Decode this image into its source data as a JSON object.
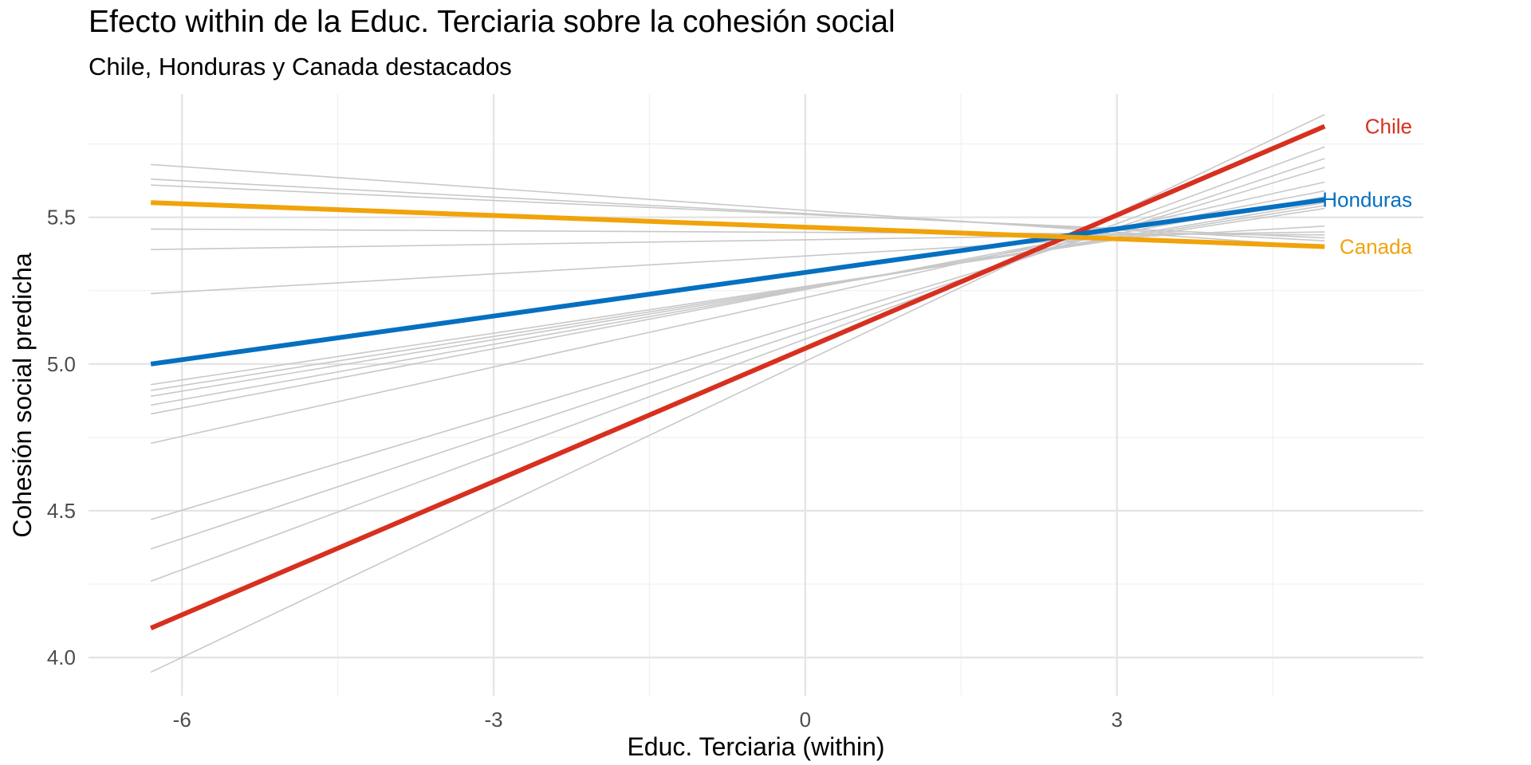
{
  "chart_data": {
    "type": "line",
    "title": "Efecto within de la Educ. Terciaria sobre la cohesión social",
    "subtitle": "Chile, Honduras y Canada destacados",
    "xlabel": "Educ. Terciaria (within)",
    "ylabel": "Cohesión social predicha",
    "xlim": [
      -6.9,
      5.95
    ],
    "ylim": [
      3.87,
      5.92
    ],
    "x_ticks": [
      -6,
      -3,
      0,
      3
    ],
    "x_tick_labels": [
      "-6",
      "-3",
      "0",
      "3"
    ],
    "y_ticks": [
      4.0,
      4.5,
      5.0,
      5.5
    ],
    "y_tick_labels": [
      "4.0",
      "4.5",
      "5.0",
      "5.5"
    ],
    "x_minor_ticks": [
      -4.5,
      -1.5,
      1.5,
      4.5
    ],
    "y_minor_ticks": [
      4.25,
      4.75,
      5.25,
      5.75
    ],
    "grid": true,
    "background_color": "#c8c8c8",
    "background_series": [
      {
        "x": [
          -6.3,
          5.0
        ],
        "y": [
          5.68,
          5.4
        ]
      },
      {
        "x": [
          -6.3,
          5.0
        ],
        "y": [
          5.63,
          5.42
        ]
      },
      {
        "x": [
          -6.3,
          5.0
        ],
        "y": [
          5.61,
          5.43
        ]
      },
      {
        "x": [
          -6.3,
          5.0
        ],
        "y": [
          5.46,
          5.44
        ]
      },
      {
        "x": [
          -6.3,
          5.0
        ],
        "y": [
          5.39,
          5.45
        ]
      },
      {
        "x": [
          -6.3,
          5.0
        ],
        "y": [
          5.24,
          5.47
        ]
      },
      {
        "x": [
          -6.3,
          5.0
        ],
        "y": [
          4.93,
          5.53
        ]
      },
      {
        "x": [
          -6.3,
          5.0
        ],
        "y": [
          4.91,
          5.54
        ]
      },
      {
        "x": [
          -6.3,
          5.0
        ],
        "y": [
          4.89,
          5.55
        ]
      },
      {
        "x": [
          -6.3,
          5.0
        ],
        "y": [
          4.86,
          5.57
        ]
      },
      {
        "x": [
          -6.3,
          5.0
        ],
        "y": [
          4.83,
          5.59
        ]
      },
      {
        "x": [
          -6.3,
          5.0
        ],
        "y": [
          4.73,
          5.62
        ]
      },
      {
        "x": [
          -6.3,
          5.0
        ],
        "y": [
          4.47,
          5.67
        ]
      },
      {
        "x": [
          -6.3,
          5.0
        ],
        "y": [
          4.37,
          5.7
        ]
      },
      {
        "x": [
          -6.3,
          5.0
        ],
        "y": [
          4.26,
          5.74
        ]
      },
      {
        "x": [
          -6.3,
          5.0
        ],
        "y": [
          3.95,
          5.85
        ]
      }
    ],
    "series": [
      {
        "name": "Chile",
        "color": "#d7301f",
        "x": [
          -6.3,
          5.0
        ],
        "y": [
          4.1,
          5.81
        ]
      },
      {
        "name": "Honduras",
        "color": "#0570c0",
        "x": [
          -6.3,
          5.0
        ],
        "y": [
          5.0,
          5.56
        ]
      },
      {
        "name": "Canada",
        "color": "#f0a30a",
        "x": [
          -6.3,
          5.0
        ],
        "y": [
          5.55,
          5.4
        ]
      }
    ]
  }
}
